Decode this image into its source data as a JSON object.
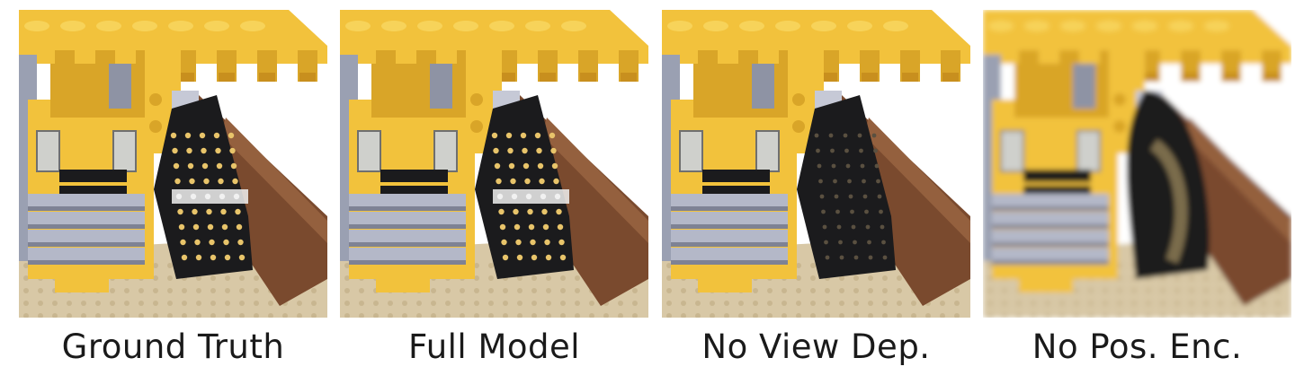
{
  "figure": {
    "panels": [
      {
        "caption": "Ground Truth",
        "rendering": "sharp"
      },
      {
        "caption": "Full Model",
        "rendering": "sharp"
      },
      {
        "caption": "No View Dep.",
        "rendering": "less-specular"
      },
      {
        "caption": "No Pos. Enc.",
        "rendering": "blurry"
      }
    ],
    "colors": {
      "yellow": "#f2c23c",
      "yellow_dark": "#d9a528",
      "black_tread": "#1b1b1d",
      "grey_plate": "#b4b8c8",
      "tan_base": "#d8c8a6",
      "brown": "#7a4a2e",
      "background": "#ffffff"
    }
  }
}
